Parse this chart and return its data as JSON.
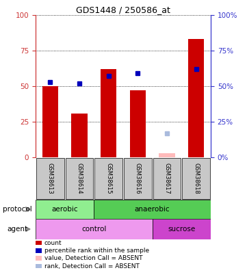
{
  "title": "GDS1448 / 250586_at",
  "samples": [
    "GSM38613",
    "GSM38614",
    "GSM38615",
    "GSM38616",
    "GSM38617",
    "GSM38618"
  ],
  "red_bars": [
    50,
    31,
    62,
    47,
    null,
    83
  ],
  "blue_dots": [
    53,
    52,
    57,
    59,
    null,
    62
  ],
  "pink_bar": {
    "sample_idx": 4,
    "value": 3
  },
  "light_blue_dot": {
    "sample_idx": 4,
    "value": 17
  },
  "protocol_groups": [
    {
      "label": "aerobic",
      "start": 0,
      "end": 2,
      "color": "#90EE90"
    },
    {
      "label": "anaerobic",
      "start": 2,
      "end": 6,
      "color": "#55CC55"
    }
  ],
  "agent_groups": [
    {
      "label": "control",
      "start": 0,
      "end": 4,
      "color": "#EE99EE"
    },
    {
      "label": "sucrose",
      "start": 4,
      "end": 6,
      "color": "#CC44CC"
    }
  ],
  "ylim": [
    0,
    100
  ],
  "yticks": [
    0,
    25,
    50,
    75,
    100
  ],
  "left_axis_color": "#CC3333",
  "right_axis_color": "#3333CC",
  "bar_color": "#CC0000",
  "dot_color": "#0000BB",
  "pink_color": "#FFBBBB",
  "light_blue_color": "#AABBDD",
  "legend_items": [
    {
      "color": "#CC0000",
      "label": "count"
    },
    {
      "color": "#0000BB",
      "label": "percentile rank within the sample"
    },
    {
      "color": "#FFBBBB",
      "label": "value, Detection Call = ABSENT"
    },
    {
      "color": "#AABBDD",
      "label": "rank, Detection Call = ABSENT"
    }
  ]
}
